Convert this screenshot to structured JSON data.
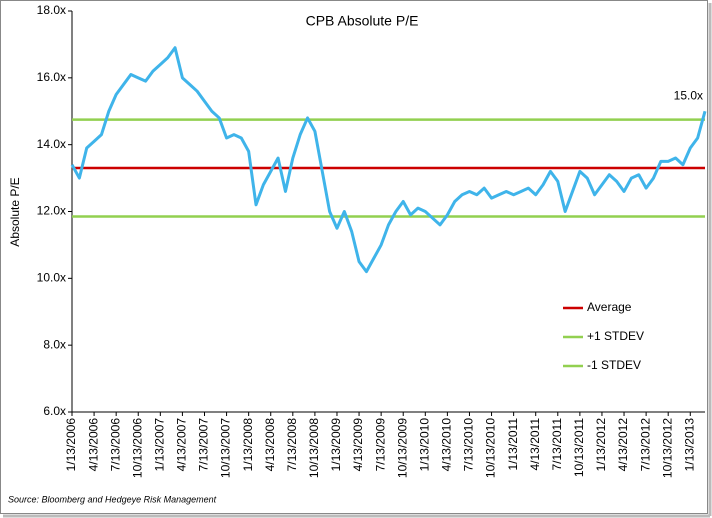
{
  "chart_data": {
    "type": "line",
    "title": "CPB Absolute P/E",
    "y_label": "Absolute P/E",
    "source": "Source: Bloomberg  and Hedgeye Risk Management",
    "categories": [
      "1/13/2006",
      null,
      null,
      "4/13/2006",
      null,
      null,
      "7/13/2006",
      null,
      null,
      "10/13/2006",
      null,
      null,
      "1/13/2007",
      null,
      null,
      "4/13/2007",
      null,
      null,
      "7/13/2007",
      null,
      null,
      "10/13/2007",
      null,
      null,
      "1/13/2008",
      null,
      null,
      "4/13/2008",
      null,
      null,
      "7/13/2008",
      null,
      null,
      "10/13/2008",
      null,
      null,
      "1/13/2009",
      null,
      null,
      "4/13/2009",
      null,
      null,
      "7/13/2009",
      null,
      null,
      "10/13/2009",
      null,
      null,
      "1/13/2010",
      null,
      null,
      "4/13/2010",
      null,
      null,
      "7/13/2010",
      null,
      null,
      "10/13/2010",
      null,
      null,
      "1/13/2011",
      null,
      null,
      "4/13/2011",
      null,
      null,
      "7/13/2011",
      null,
      null,
      "10/13/2011",
      null,
      null,
      "1/13/2012",
      null,
      null,
      "4/13/2012",
      null,
      null,
      "7/13/2012",
      null,
      null,
      "10/13/2012",
      null,
      null,
      "1/13/2013",
      null,
      null
    ],
    "series": [
      {
        "name": "CPB Absolute P/E",
        "color": "#3fb4ea",
        "values": [
          13.4,
          13.0,
          13.9,
          14.1,
          14.3,
          15.0,
          15.5,
          15.8,
          16.1,
          16.0,
          15.9,
          16.2,
          16.4,
          16.6,
          16.9,
          16.0,
          15.8,
          15.6,
          15.3,
          15.0,
          14.8,
          14.2,
          14.3,
          14.2,
          13.8,
          12.2,
          12.8,
          13.2,
          13.6,
          12.6,
          13.6,
          14.3,
          14.8,
          14.4,
          13.2,
          12.0,
          11.5,
          12.0,
          11.4,
          10.5,
          10.2,
          10.6,
          11.0,
          11.6,
          12.0,
          12.3,
          11.9,
          12.1,
          12.0,
          11.8,
          11.6,
          11.9,
          12.3,
          12.5,
          12.6,
          12.5,
          12.7,
          12.4,
          12.5,
          12.6,
          12.5,
          12.6,
          12.7,
          12.5,
          12.8,
          13.2,
          12.9,
          12.0,
          12.6,
          13.2,
          13.0,
          12.5,
          12.8,
          13.1,
          12.9,
          12.6,
          13.0,
          13.1,
          12.7,
          13.0,
          13.5,
          13.5,
          13.6,
          13.4,
          13.9,
          14.2,
          15.0
        ],
        "value_labels": [
          null,
          null,
          null,
          null,
          null,
          null,
          null,
          null,
          null,
          null,
          null,
          null,
          null,
          null,
          null,
          null,
          null,
          null,
          null,
          null,
          null,
          null,
          null,
          null,
          null,
          null,
          null,
          null,
          null,
          null,
          null,
          null,
          null,
          null,
          null,
          null,
          null,
          null,
          null,
          null,
          null,
          null,
          null,
          null,
          null,
          null,
          null,
          null,
          null,
          null,
          null,
          null,
          null,
          null,
          null,
          null,
          null,
          null,
          null,
          null,
          null,
          null,
          null,
          null,
          null,
          null,
          null,
          null,
          null,
          null,
          null,
          null,
          null,
          null,
          null,
          null,
          null,
          null,
          null,
          null,
          null,
          null,
          null,
          null,
          null,
          null,
          "15.0x"
        ]
      }
    ],
    "reference_lines": [
      {
        "name": "Average",
        "value": 13.3,
        "color": "#cc0000"
      },
      {
        "name": "+1 STDEV",
        "value": 14.75,
        "color": "#92d050"
      },
      {
        "name": "-1 STDEV",
        "value": 11.85,
        "color": "#92d050"
      }
    ],
    "ylim": [
      6,
      18
    ],
    "yticks": [
      {
        "value": 6,
        "label": "6.0x"
      },
      {
        "value": 8,
        "label": "8.0x"
      },
      {
        "value": 10,
        "label": "10.0x"
      },
      {
        "value": 12,
        "label": "12.0x"
      },
      {
        "value": 14,
        "label": "14.0x"
      },
      {
        "value": 16,
        "label": "16.0x"
      },
      {
        "value": 18,
        "label": "18.0x"
      }
    ],
    "legend_position": "lower right"
  }
}
